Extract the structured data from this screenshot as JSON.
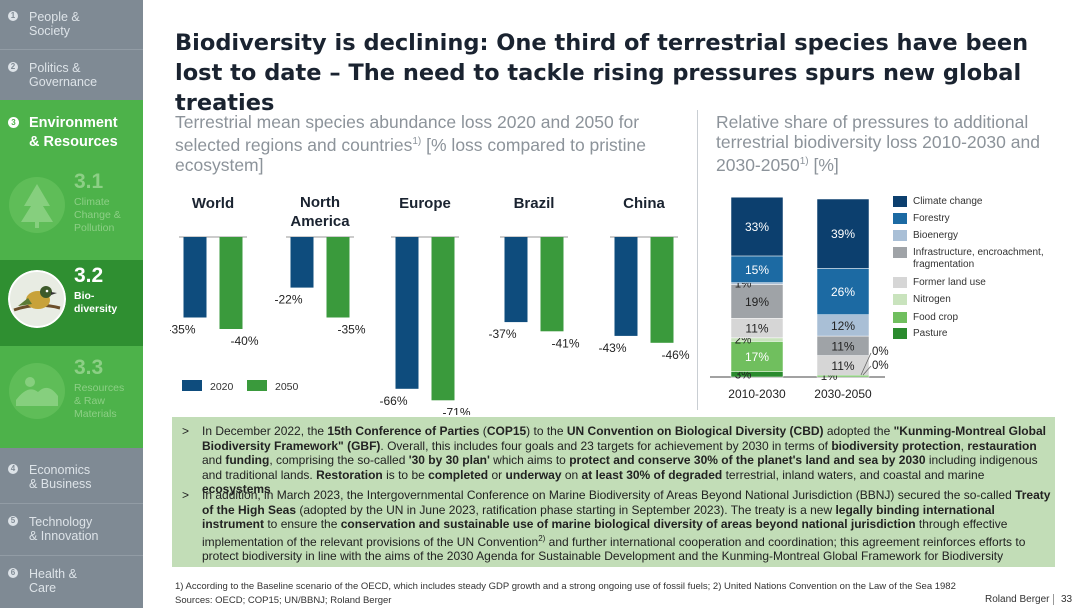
{
  "sidebar": {
    "items_top": [
      {
        "num": "1",
        "label": "People &\nSociety"
      },
      {
        "num": "2",
        "label": "Politics &\nGovernance"
      }
    ],
    "active_section": {
      "num": "3",
      "label": "Environment\n& Resources"
    },
    "subsections": [
      {
        "num": "3.1",
        "label": "Climate\nChange &\nPollution"
      },
      {
        "num": "3.2",
        "label": "Bio-\ndiversity"
      },
      {
        "num": "3.3",
        "label": "Resources\n& Raw\nMaterials"
      }
    ],
    "items_bottom": [
      {
        "num": "4",
        "label": "Economics\n& Business"
      },
      {
        "num": "5",
        "label": "Technology\n& Innovation"
      },
      {
        "num": "6",
        "label": "Health &\nCare"
      }
    ]
  },
  "title": "Biodiversity is declining: One third of terrestrial species have been lost to date – The need to tackle rising pressures spurs new global treaties",
  "left_subtitle": {
    "text": "Terrestrial mean species abundance loss 2020 and 2050 for selected regions and countries",
    "sup": "1)",
    "tail": " [% loss compared to pristine ecosystem]"
  },
  "right_subtitle": {
    "text": "Relative share of pressures to additional terrestrial biodiversity loss 2010-2030 and 2030-2050",
    "sup": "1)",
    "tail": " [%]"
  },
  "chart_data": [
    {
      "type": "bar",
      "title": "Terrestrial mean species abundance loss 2020 and 2050",
      "categories": [
        "World",
        "North\nAmerica",
        "Europe",
        "Brazil",
        "China"
      ],
      "series": [
        {
          "name": "2020",
          "color": "#0e4c7d",
          "values": [
            -35,
            -22,
            -66,
            -37,
            -43
          ]
        },
        {
          "name": "2050",
          "color": "#3a9a3c",
          "values": [
            -40,
            -35,
            -71,
            -41,
            -46
          ]
        }
      ],
      "ylim": [
        -75,
        0
      ]
    },
    {
      "type": "bar",
      "stacked": true,
      "title": "Relative share of pressures to additional terrestrial biodiversity loss",
      "categories": [
        "2010-2030",
        "2030-2050"
      ],
      "series": [
        {
          "name": "Pasture",
          "color": "#2a8b2e",
          "values": [
            3,
            0
          ]
        },
        {
          "name": "Food crop",
          "color": "#70bf5e",
          "values": [
            17,
            1
          ]
        },
        {
          "name": "Nitrogen",
          "color": "#c9e3bd",
          "values": [
            2,
            0
          ]
        },
        {
          "name": "Former land use",
          "color": "#d6d6d6",
          "values": [
            11,
            11
          ]
        },
        {
          "name": "Infrastructure, encroachment, fragmentation",
          "color": "#9fa3a7",
          "values": [
            19,
            11
          ]
        },
        {
          "name": "Bioenergy",
          "color": "#a9bfd6",
          "values": [
            1,
            12
          ]
        },
        {
          "name": "Forestry",
          "color": "#1c6aa3",
          "values": [
            15,
            26
          ]
        },
        {
          "name": "Climate change",
          "color": "#0c3f6e",
          "values": [
            33,
            39
          ]
        }
      ],
      "legend_order": [
        "Climate change",
        "Forestry",
        "Bioenergy",
        "Infrastructure, encroachment, fragmentation",
        "Former land use",
        "Nitrogen",
        "Food crop",
        "Pasture"
      ]
    }
  ],
  "box": {
    "b1": [
      {
        "t": "In December 2022, the "
      },
      {
        "t": "15th Conference of Parties",
        "b": true
      },
      {
        "t": " ("
      },
      {
        "t": "COP15",
        "b": true
      },
      {
        "t": ") to the "
      },
      {
        "t": "UN Convention on Biological Diversity (CBD)",
        "b": true
      },
      {
        "t": " adopted the "
      },
      {
        "t": "\"Kunming-Montreal Global Biodiversity Framework\" (GBF)",
        "b": true
      },
      {
        "t": ". Overall, this includes four goals and 23 targets for achievement by 2030 in terms of "
      },
      {
        "t": "biodiversity protection",
        "b": true
      },
      {
        "t": ", "
      },
      {
        "t": "restauration",
        "b": true
      },
      {
        "t": " and "
      },
      {
        "t": "funding",
        "b": true
      },
      {
        "t": ", comprising the so-called "
      },
      {
        "t": "'30 by 30 plan'",
        "b": true
      },
      {
        "t": " which aims to "
      },
      {
        "t": "protect and conserve 30% of the planet's land and sea by 2030",
        "b": true
      },
      {
        "t": " including indigenous and traditional lands. "
      },
      {
        "t": "Restoration",
        "b": true
      },
      {
        "t": " is to be "
      },
      {
        "t": "completed",
        "b": true
      },
      {
        "t": " or "
      },
      {
        "t": "underway",
        "b": true
      },
      {
        "t": " on "
      },
      {
        "t": "at least 30% of degraded",
        "b": true
      },
      {
        "t": " terrestrial, inland waters, and coastal and marine "
      },
      {
        "t": "ecosystems",
        "b": true
      }
    ],
    "b2": [
      {
        "t": "In addition, in March 2023, the Intergovernmental Conference on Marine Biodiversity of Areas Beyond National Jurisdiction (BBNJ) secured the so-called "
      },
      {
        "t": "Treaty of the High Seas",
        "b": true
      },
      {
        "t": " (adopted by the UN in June 2023, ratification phase starting in September 2023). The treaty is a new "
      },
      {
        "t": "legally binding international instrument",
        "b": true
      },
      {
        "t": " to ensure the "
      },
      {
        "t": "conservation and sustainable use of marine biological diversity of areas beyond national jurisdiction",
        "b": true
      },
      {
        "t": " through effective implementation of the relevant provisions of the UN Convention"
      },
      {
        "t": "2)",
        "sup": true
      },
      {
        "t": " and further international cooperation and coordination; this agreement reinforces efforts to protect biodiversity in line with the aims of the 2030 Agenda for Sustainable Development and the Kunming-Montreal Global Framework for Biodiversity"
      }
    ],
    "arrow": ">"
  },
  "footnote": "1) According to the Baseline scenario of the OECD, which includes steady GDP growth and a strong ongoing use of fossil fuels;  2) United Nations Convention on the Law of the Sea 1982",
  "sources": "Sources: OECD; COP15; UN/BBNJ; Roland Berger",
  "brand": "Roland Berger",
  "page_number": "33",
  "colors": {
    "sidebar": "#7f8a94",
    "env": "#4db24a",
    "env_active": "#2f8f31",
    "box": "#c2ddb7"
  }
}
